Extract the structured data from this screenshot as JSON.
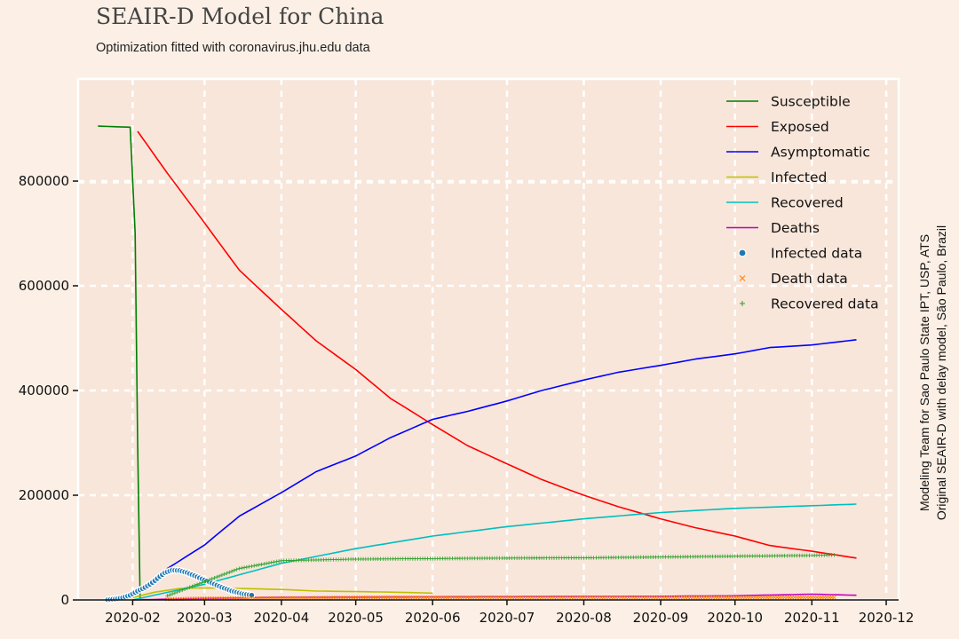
{
  "header": {
    "title": "SEAIR-D Model for China",
    "subtitle": "Optimization fitted with coronavirus.jhu.edu data"
  },
  "side_note": {
    "line1": "Modeling Team for Sao Paulo State IPT, USP, ATS",
    "line2": "Original SEAIR-D with delay model, São Paulo, Brazil"
  },
  "colors": {
    "background": "#fcf0e6",
    "plot_background": "#f8e6da",
    "grid": "#ffffff",
    "axis": "#111111"
  },
  "chart_data": {
    "type": "line",
    "title": "SEAIR-D Model for China",
    "subtitle": "Optimization fitted with coronavirus.jhu.edu data",
    "xlabel": "",
    "ylabel": "",
    "x_axis": "date",
    "xlim": [
      "2020-01-10",
      "2020-12-06"
    ],
    "ylim": [
      0,
      995000
    ],
    "x_ticks": [
      "2020-02",
      "2020-03",
      "2020-04",
      "2020-05",
      "2020-06",
      "2020-07",
      "2020-08",
      "2020-09",
      "2020-10",
      "2020-11",
      "2020-12"
    ],
    "y_ticks": [
      0,
      200000,
      400000,
      600000,
      800000
    ],
    "grid": true,
    "legend_position": "top-right",
    "series": [
      {
        "name": "Susceptible",
        "kind": "line",
        "color": "#008000",
        "x": [
          "2020-01-18",
          "2020-01-31",
          "2020-02-02",
          "2020-02-03",
          "2020-02-04"
        ],
        "y": [
          905000,
          903000,
          700000,
          300000,
          0
        ]
      },
      {
        "name": "Exposed",
        "kind": "line",
        "color": "#ff0000",
        "x": [
          "2020-02-03",
          "2020-02-15",
          "2020-03-01",
          "2020-03-15",
          "2020-04-01",
          "2020-04-15",
          "2020-05-01",
          "2020-05-15",
          "2020-06-01",
          "2020-06-15",
          "2020-07-01",
          "2020-07-15",
          "2020-08-01",
          "2020-08-15",
          "2020-09-01",
          "2020-09-15",
          "2020-10-01",
          "2020-10-15",
          "2020-11-01",
          "2020-11-19"
        ],
        "y": [
          895000,
          815000,
          720000,
          630000,
          555000,
          495000,
          440000,
          385000,
          335000,
          295000,
          260000,
          230000,
          200000,
          178000,
          155000,
          138000,
          122000,
          104000,
          93000,
          80000
        ]
      },
      {
        "name": "Asymptomatic",
        "kind": "line",
        "color": "#0000ff",
        "x": [
          "2020-01-26",
          "2020-02-01",
          "2020-02-15",
          "2020-03-01",
          "2020-03-15",
          "2020-04-01",
          "2020-04-15",
          "2020-05-01",
          "2020-05-15",
          "2020-06-01",
          "2020-06-15",
          "2020-07-01",
          "2020-07-15",
          "2020-08-01",
          "2020-08-15",
          "2020-09-01",
          "2020-09-15",
          "2020-10-01",
          "2020-10-15",
          "2020-11-01",
          "2020-11-19"
        ],
        "y": [
          0,
          10000,
          60000,
          105000,
          160000,
          205000,
          245000,
          275000,
          310000,
          345000,
          360000,
          380000,
          400000,
          420000,
          435000,
          448000,
          460000,
          470000,
          482000,
          487000,
          497000
        ]
      },
      {
        "name": "Infected",
        "kind": "line",
        "color": "#bfbf00",
        "x": [
          "2020-01-30",
          "2020-02-10",
          "2020-02-20",
          "2020-03-01",
          "2020-03-15",
          "2020-04-01",
          "2020-04-15",
          "2020-05-01",
          "2020-05-15",
          "2020-06-01"
        ],
        "y": [
          2000,
          15000,
          22000,
          23000,
          22000,
          20000,
          17000,
          16000,
          15000,
          13000
        ]
      },
      {
        "name": "Recovered",
        "kind": "line",
        "color": "#00bfbf",
        "x": [
          "2020-02-01",
          "2020-03-01",
          "2020-04-01",
          "2020-05-01",
          "2020-06-01",
          "2020-07-01",
          "2020-08-01",
          "2020-09-01",
          "2020-10-01",
          "2020-11-01",
          "2020-11-19"
        ],
        "y": [
          0,
          30000,
          70000,
          98000,
          122000,
          140000,
          155000,
          167000,
          175000,
          180000,
          183000
        ]
      },
      {
        "name": "Deaths",
        "kind": "line",
        "color": "#bf00bf",
        "x": [
          "2020-02-01",
          "2020-03-01",
          "2020-04-01",
          "2020-05-01",
          "2020-06-01",
          "2020-07-01",
          "2020-08-01",
          "2020-09-01",
          "2020-10-01",
          "2020-11-01",
          "2020-11-19"
        ],
        "y": [
          0,
          3000,
          5000,
          5500,
          6000,
          6300,
          6700,
          7000,
          8000,
          11000,
          9000
        ]
      },
      {
        "name": "Infected data",
        "kind": "scatter-dot",
        "color": "#1f77b4",
        "x": [
          "2020-01-22",
          "2020-01-25",
          "2020-01-28",
          "2020-01-31",
          "2020-02-03",
          "2020-02-06",
          "2020-02-08",
          "2020-02-10",
          "2020-02-12",
          "2020-02-14",
          "2020-02-17",
          "2020-02-20",
          "2020-02-23",
          "2020-02-26",
          "2020-02-29",
          "2020-03-04",
          "2020-03-08",
          "2020-03-12",
          "2020-03-16",
          "2020-03-20"
        ],
        "y": [
          500,
          1800,
          4500,
          9000,
          17000,
          24000,
          30000,
          37000,
          45000,
          52000,
          57000,
          56000,
          52000,
          46000,
          40000,
          32000,
          24000,
          17000,
          12000,
          9000
        ]
      },
      {
        "name": "Death data",
        "kind": "scatter-x",
        "color": "#ff7f0e",
        "x": [
          "2020-02-15",
          "2020-03-01",
          "2020-04-01",
          "2020-05-01",
          "2020-06-01",
          "2020-07-01",
          "2020-08-01",
          "2020-09-01",
          "2020-10-01",
          "2020-11-01",
          "2020-11-10"
        ],
        "y": [
          1500,
          2900,
          3300,
          4600,
          4600,
          4650,
          4650,
          4700,
          4740,
          4750,
          4750
        ]
      },
      {
        "name": "Recovered data",
        "kind": "scatter-plus",
        "color": "#2ca02c",
        "x": [
          "2020-02-15",
          "2020-03-01",
          "2020-03-15",
          "2020-04-01",
          "2020-05-01",
          "2020-06-01",
          "2020-07-01",
          "2020-08-01",
          "2020-09-01",
          "2020-10-01",
          "2020-11-01",
          "2020-11-10"
        ],
        "y": [
          8000,
          35000,
          60000,
          75000,
          78000,
          79000,
          80000,
          80500,
          82000,
          83500,
          85000,
          86000
        ]
      }
    ]
  }
}
